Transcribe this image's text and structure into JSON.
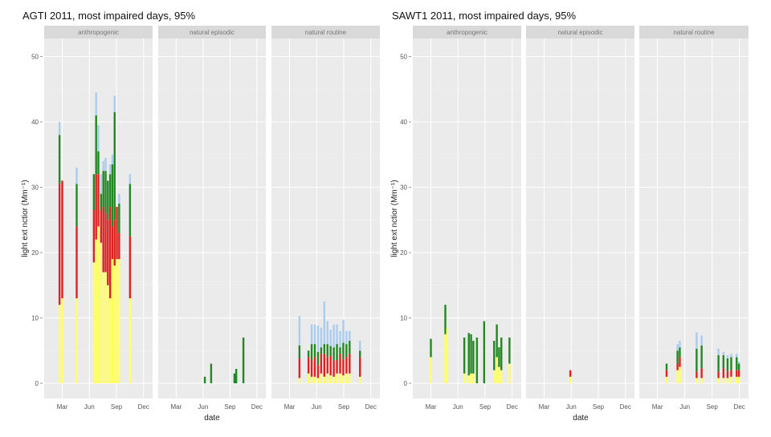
{
  "chart_data": [
    {
      "type": "bar",
      "stacked": true,
      "title": "AGTI 2011, most impaired days, 95%",
      "xlabel": "date",
      "ylabel": "light ext nctior (Mm⁻¹)",
      "ylim": [
        0,
        53
      ],
      "yticks": [
        0,
        10,
        20,
        30,
        40,
        50
      ],
      "xtick_labels": [
        "Mar",
        "Jun",
        "Sep",
        "Dec"
      ],
      "xtick_months": [
        3,
        6,
        9,
        12
      ],
      "xrange_months": [
        1,
        13
      ],
      "series_colors": {
        "yellow": "#ffff66",
        "red": "#dd2222",
        "green": "#228822",
        "blue": "#aaccee"
      },
      "facets": [
        {
          "label": "anthropogenic",
          "bars": [
            {
              "m": 2.7,
              "y": 12,
              "r": 18.5,
              "g": 7.5,
              "b": 2
            },
            {
              "m": 3.0,
              "y": 13,
              "r": 18,
              "g": 0,
              "b": 0
            },
            {
              "m": 4.6,
              "y": 13,
              "r": 11,
              "g": 6.5,
              "b": 2.5
            },
            {
              "m": 6.5,
              "y": 18.5,
              "r": 8,
              "g": 5.5,
              "b": 0
            },
            {
              "m": 6.75,
              "y": 22,
              "r": 10,
              "g": 9,
              "b": 3.5
            },
            {
              "m": 7.0,
              "y": 24,
              "r": 8,
              "g": 3.5,
              "b": 4
            },
            {
              "m": 7.3,
              "y": 21.5,
              "r": 5,
              "g": 2.5,
              "b": 3
            },
            {
              "m": 7.55,
              "y": 17,
              "r": 10,
              "g": 5.5,
              "b": 1.5
            },
            {
              "m": 7.8,
              "y": 17,
              "r": 9,
              "g": 6.5,
              "b": 2
            },
            {
              "m": 8.05,
              "y": 15,
              "r": 10,
              "g": 6,
              "b": 0
            },
            {
              "m": 8.3,
              "y": 13,
              "r": 14,
              "g": 5,
              "b": 1.5
            },
            {
              "m": 8.55,
              "y": 19,
              "r": 5,
              "g": 9.5,
              "b": 1.5
            },
            {
              "m": 8.8,
              "y": 18,
              "r": 7,
              "g": 16.5,
              "b": 2.5
            },
            {
              "m": 9.05,
              "y": 19,
              "r": 8,
              "g": 0,
              "b": 0
            },
            {
              "m": 9.3,
              "y": 19,
              "r": 4,
              "g": 4.5,
              "b": 1.5
            },
            {
              "m": 10.5,
              "y": 13,
              "r": 9.5,
              "g": 8,
              "b": 1.5
            }
          ]
        },
        {
          "label": "natural episodic",
          "bars": [
            {
              "m": 6.2,
              "y": 0,
              "r": 0,
              "g": 1,
              "b": 0
            },
            {
              "m": 6.9,
              "y": 0,
              "r": 0,
              "g": 3,
              "b": 0
            },
            {
              "m": 9.5,
              "y": 0,
              "r": 0,
              "g": 1.5,
              "b": 0
            },
            {
              "m": 9.7,
              "y": 0,
              "r": 0,
              "g": 2.2,
              "b": 0
            },
            {
              "m": 10.5,
              "y": 0,
              "r": 0,
              "g": 7,
              "b": 0
            }
          ]
        },
        {
          "label": "natural routine",
          "bars": [
            {
              "m": 4.1,
              "y": 0.8,
              "r": 3,
              "g": 2,
              "b": 4.5
            },
            {
              "m": 5.1,
              "y": 1.5,
              "r": 2.5,
              "g": 1,
              "b": 0
            },
            {
              "m": 5.45,
              "y": 1,
              "r": 2.5,
              "g": 2.5,
              "b": 3
            },
            {
              "m": 5.8,
              "y": 1,
              "r": 3,
              "g": 2,
              "b": 3
            },
            {
              "m": 6.15,
              "y": 0.8,
              "r": 2,
              "g": 2,
              "b": 4
            },
            {
              "m": 6.5,
              "y": 1.5,
              "r": 3,
              "g": 1,
              "b": 3
            },
            {
              "m": 6.85,
              "y": 1,
              "r": 3.5,
              "g": 1.5,
              "b": 6.5
            },
            {
              "m": 7.2,
              "y": 1.5,
              "r": 2.5,
              "g": 2,
              "b": 3.5
            },
            {
              "m": 7.55,
              "y": 1.2,
              "r": 3,
              "g": 1.5,
              "b": 2.5
            },
            {
              "m": 7.9,
              "y": 1,
              "r": 2.5,
              "g": 2,
              "b": 3.5
            },
            {
              "m": 8.25,
              "y": 1.5,
              "r": 2,
              "g": 2.5,
              "b": 3
            },
            {
              "m": 8.6,
              "y": 1.5,
              "r": 3,
              "g": 1,
              "b": 2.5
            },
            {
              "m": 8.95,
              "y": 1.2,
              "r": 2.5,
              "g": 2.5,
              "b": 3.5
            },
            {
              "m": 9.3,
              "y": 1.5,
              "r": 2.5,
              "g": 2,
              "b": 2
            },
            {
              "m": 9.65,
              "y": 1.5,
              "r": 3,
              "g": 2,
              "b": 1.5
            },
            {
              "m": 10.8,
              "y": 1,
              "r": 3,
              "g": 1,
              "b": 1.5
            }
          ]
        }
      ]
    },
    {
      "type": "bar",
      "stacked": true,
      "title": "SAWT1 2011, most impaired days, 95%",
      "xlabel": "date",
      "ylabel": "light ext nctior (Mm⁻¹)",
      "ylim": [
        0,
        53
      ],
      "yticks": [
        0,
        10,
        20,
        30,
        40,
        50
      ],
      "xtick_labels": [
        "Mar",
        "Jun",
        "Sep",
        "Dec"
      ],
      "xtick_months": [
        3,
        6,
        9,
        12
      ],
      "xrange_months": [
        1,
        13
      ],
      "series_colors": {
        "yellow": "#ffff66",
        "red": "#dd2222",
        "green": "#228822",
        "blue": "#aaccee"
      },
      "facets": [
        {
          "label": "anthropogenic",
          "bars": [
            {
              "m": 3.0,
              "y": 4,
              "r": 0,
              "g": 2.8,
              "b": 0
            },
            {
              "m": 4.6,
              "y": 7.5,
              "r": 0,
              "g": 4.5,
              "b": 0
            },
            {
              "m": 4.8,
              "y": 8.5,
              "r": 0,
              "g": 0,
              "b": 0
            },
            {
              "m": 6.7,
              "y": 1.5,
              "r": 0,
              "g": 5.5,
              "b": 0
            },
            {
              "m": 7.2,
              "y": 1.2,
              "r": 0,
              "g": 6.5,
              "b": 0
            },
            {
              "m": 7.45,
              "y": 1.5,
              "r": 0,
              "g": 6,
              "b": 0
            },
            {
              "m": 7.7,
              "y": 1.5,
              "r": 0,
              "g": 5,
              "b": 0
            },
            {
              "m": 8.1,
              "y": 0,
              "r": 0,
              "g": 7,
              "b": 0
            },
            {
              "m": 8.9,
              "y": 0,
              "r": 0,
              "g": 9.5,
              "b": 0
            },
            {
              "m": 10.0,
              "y": 2,
              "r": 0,
              "g": 4.5,
              "b": 0
            },
            {
              "m": 10.3,
              "y": 4,
              "r": 0,
              "g": 5,
              "b": 0
            },
            {
              "m": 10.55,
              "y": 2.5,
              "r": 0,
              "g": 3,
              "b": 0
            },
            {
              "m": 10.8,
              "y": 2,
              "r": 0,
              "g": 5,
              "b": 0
            },
            {
              "m": 11.7,
              "y": 3,
              "r": 0,
              "g": 4,
              "b": 0
            }
          ]
        },
        {
          "label": "natural episodic",
          "bars": [
            {
              "m": 5.9,
              "y": 1,
              "r": 1,
              "g": 0,
              "b": 0
            }
          ]
        },
        {
          "label": "natural routine",
          "bars": [
            {
              "m": 4.0,
              "y": 1,
              "r": 1,
              "g": 1,
              "b": 0
            },
            {
              "m": 5.2,
              "y": 2,
              "r": 1,
              "g": 2,
              "b": 1
            },
            {
              "m": 5.45,
              "y": 2.5,
              "r": 1.5,
              "g": 1.5,
              "b": 1
            },
            {
              "m": 7.3,
              "y": 0.8,
              "r": 1,
              "g": 3.5,
              "b": 2.5
            },
            {
              "m": 7.85,
              "y": 0.8,
              "r": 1.5,
              "g": 3.5,
              "b": 1.5
            },
            {
              "m": 9.7,
              "y": 0.8,
              "r": 1,
              "g": 2.5,
              "b": 1
            },
            {
              "m": 10.25,
              "y": 0.8,
              "r": 1.5,
              "g": 2,
              "b": 0.5
            },
            {
              "m": 10.7,
              "y": 0.8,
              "r": 1,
              "g": 2,
              "b": 0.5
            },
            {
              "m": 11.1,
              "y": 1,
              "r": 1,
              "g": 2,
              "b": 0.5
            },
            {
              "m": 11.7,
              "y": 1,
              "r": 1,
              "g": 2,
              "b": 0.5
            },
            {
              "m": 11.95,
              "y": 1,
              "r": 1,
              "g": 1,
              "b": 0.3
            }
          ]
        }
      ]
    }
  ]
}
